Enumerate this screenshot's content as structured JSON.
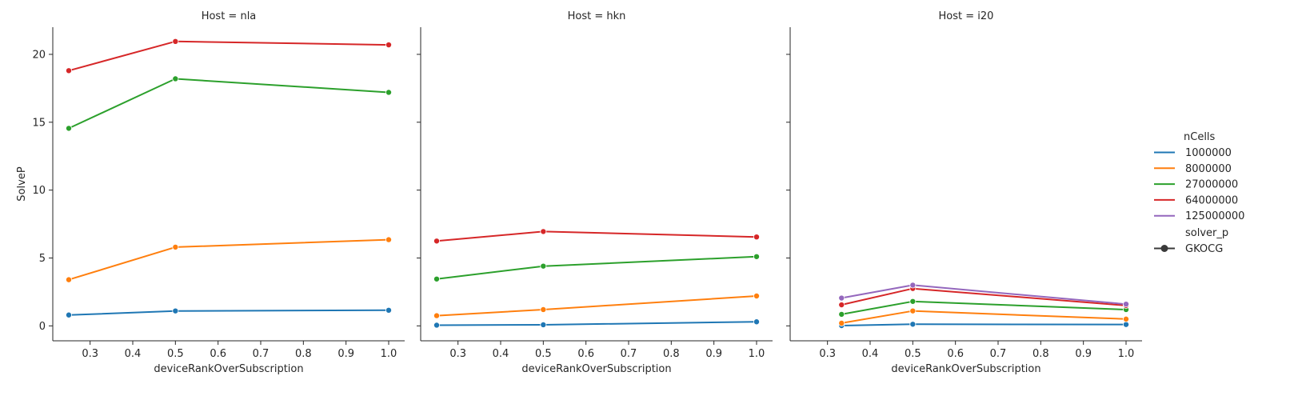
{
  "chart_data": {
    "type": "line",
    "ylabel": "SolveP",
    "ylim": [
      -1.1,
      22.0
    ],
    "yticks": [
      0,
      5,
      10,
      15,
      20
    ],
    "xticks": [
      0.3,
      0.4,
      0.5,
      0.6,
      0.7,
      0.8,
      0.9,
      1.0
    ],
    "xtick_labels": [
      "0.3",
      "0.4",
      "0.5",
      "0.6",
      "0.7",
      "0.8",
      "0.9",
      "1.0"
    ],
    "xlim": [
      0.2125,
      1.0375
    ],
    "colors": {
      "1000000": "#1f77b4",
      "8000000": "#ff7f0e",
      "27000000": "#2ca02c",
      "64000000": "#d62728",
      "125000000": "#9467bd"
    },
    "legend": {
      "placement": "right",
      "hue_title": "nCells",
      "hue_entries": [
        "1000000",
        "8000000",
        "27000000",
        "64000000",
        "125000000"
      ],
      "style_title": "solver_p",
      "style_entries": [
        "GKOCG"
      ]
    },
    "panels": [
      {
        "title": "Host = nla",
        "xlabel": "deviceRankOverSubscription",
        "series": [
          {
            "name": "1000000",
            "x": [
              0.25,
              0.5,
              1.0
            ],
            "y": [
              0.8,
              1.1,
              1.15
            ]
          },
          {
            "name": "8000000",
            "x": [
              0.25,
              0.5,
              1.0
            ],
            "y": [
              3.4,
              5.8,
              6.35
            ]
          },
          {
            "name": "27000000",
            "x": [
              0.25,
              0.5,
              1.0
            ],
            "y": [
              14.55,
              18.2,
              17.2
            ]
          },
          {
            "name": "64000000",
            "x": [
              0.25,
              0.5,
              1.0
            ],
            "y": [
              18.8,
              20.95,
              20.7
            ]
          }
        ]
      },
      {
        "title": "Host = hkn",
        "xlabel": "deviceRankOverSubscription",
        "series": [
          {
            "name": "1000000",
            "x": [
              0.25,
              0.5,
              1.0
            ],
            "y": [
              0.05,
              0.08,
              0.3
            ]
          },
          {
            "name": "8000000",
            "x": [
              0.25,
              0.5,
              1.0
            ],
            "y": [
              0.75,
              1.2,
              2.2
            ]
          },
          {
            "name": "27000000",
            "x": [
              0.25,
              0.5,
              1.0
            ],
            "y": [
              3.45,
              4.4,
              5.1
            ]
          },
          {
            "name": "64000000",
            "x": [
              0.25,
              0.5,
              1.0
            ],
            "y": [
              6.25,
              6.95,
              6.55
            ]
          }
        ]
      },
      {
        "title": "Host = i20",
        "xlabel": "deviceRankOverSubscription",
        "series": [
          {
            "name": "1000000",
            "x": [
              0.333,
              0.5,
              1.0
            ],
            "y": [
              0.02,
              0.12,
              0.1
            ]
          },
          {
            "name": "8000000",
            "x": [
              0.333,
              0.5,
              1.0
            ],
            "y": [
              0.2,
              1.1,
              0.5
            ]
          },
          {
            "name": "27000000",
            "x": [
              0.333,
              0.5,
              1.0
            ],
            "y": [
              0.85,
              1.8,
              1.2
            ]
          },
          {
            "name": "64000000",
            "x": [
              0.333,
              0.5,
              1.0
            ],
            "y": [
              1.55,
              2.75,
              1.5
            ]
          },
          {
            "name": "125000000",
            "x": [
              0.333,
              0.5,
              1.0
            ],
            "y": [
              2.05,
              3.0,
              1.6
            ]
          }
        ]
      }
    ]
  }
}
